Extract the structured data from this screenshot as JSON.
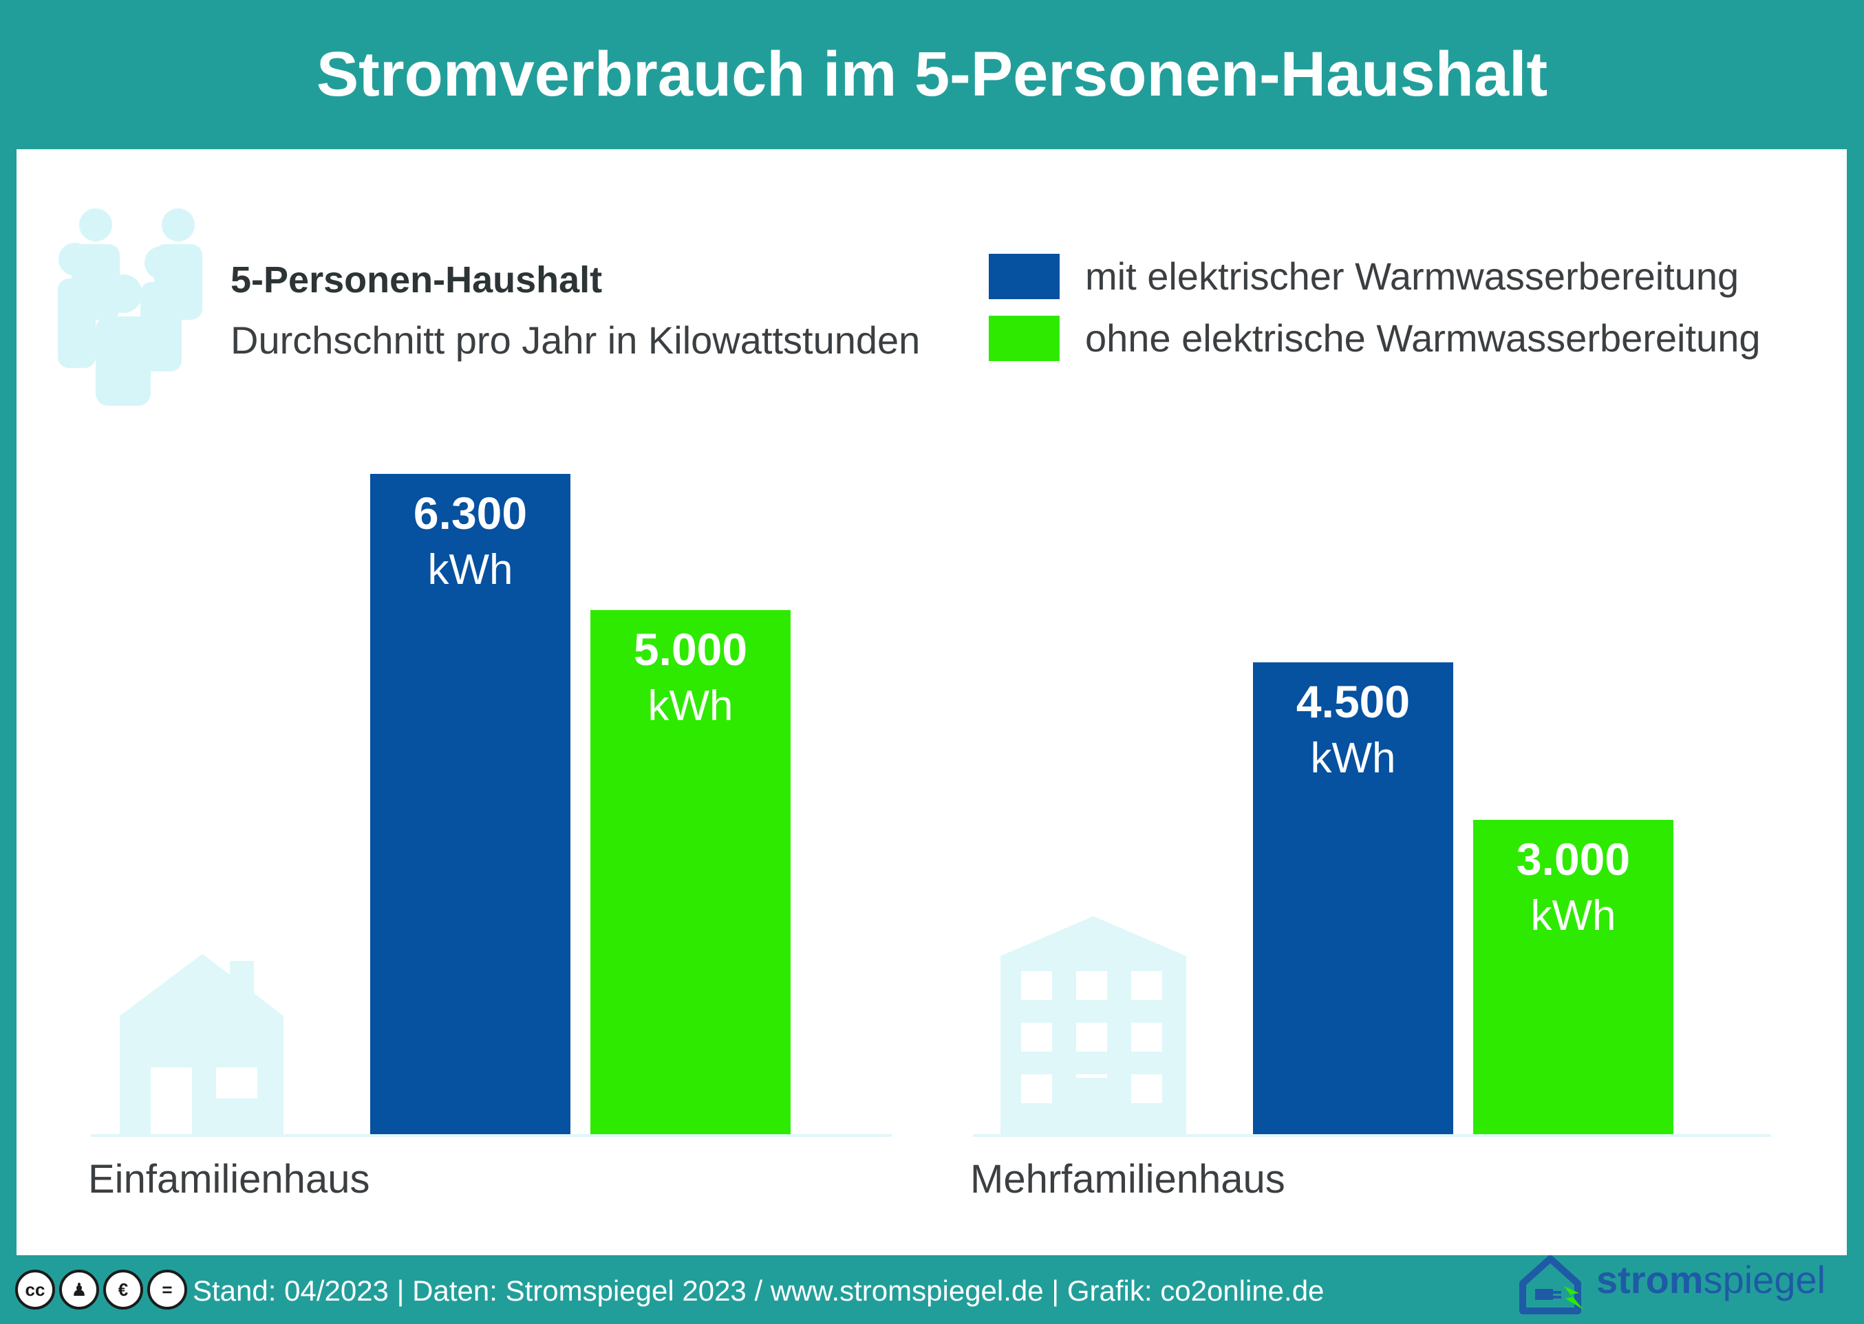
{
  "header": {
    "title": "Stromverbrauch im 5-Personen-Haushalt"
  },
  "info": {
    "subtitle": "5-Personen-Haushalt",
    "description": "Durchschnitt pro Jahr in Kilowattstunden",
    "icon": "people-group-icon"
  },
  "legend": [
    {
      "label": "mit elektrischer Warmwasserbereitung",
      "color": "#0651a0"
    },
    {
      "label": "ohne elektrische Warmwasserbereitung",
      "color": "#2eea00"
    }
  ],
  "chart_data": {
    "type": "bar",
    "categories": [
      "Einfamilienhaus",
      "Mehrfamilienhaus"
    ],
    "category_icons": [
      "house-icon",
      "apartment-building-icon"
    ],
    "series": [
      {
        "name": "mit elektrischer Warmwasserbereitung",
        "color": "#0651a0",
        "values": [
          6300,
          4500
        ],
        "labels": [
          "6.300",
          "4.500"
        ]
      },
      {
        "name": "ohne elektrische Warmwasserbereitung",
        "color": "#2eea00",
        "values": [
          5000,
          3000
        ],
        "labels": [
          "5.000",
          "3.000"
        ]
      }
    ],
    "unit": "kWh",
    "ylim": [
      0,
      6300
    ],
    "grid": false,
    "legend_position": "top-right"
  },
  "footer": {
    "license_icons": [
      "cc-icon",
      "by-icon",
      "nc-eu-icon",
      "nd-icon"
    ],
    "credits": "Stand: 04/2023  |  Daten: Stromspiegel 2023 / www.stromspiegel.de  |  Grafik: co2online.de"
  },
  "brand": {
    "bold": "strom",
    "regular": "spiegel",
    "icon": "house-plug-logo-icon",
    "color": "#1f5aa6",
    "accent": "#2eea00"
  },
  "colors": {
    "teal": "#229e9a",
    "icon_tint": "#dff7f9"
  }
}
